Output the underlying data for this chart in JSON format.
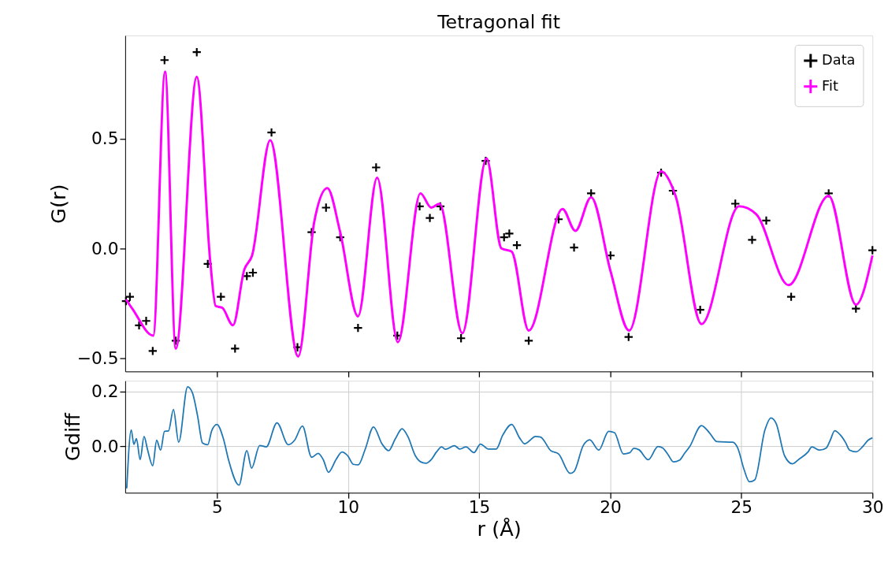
{
  "chart_data": [
    {
      "type": "scatter",
      "title": "Tetragonal fit",
      "ylabel": "G(r)",
      "xlim": [
        1.5,
        30
      ],
      "xticks": [
        5,
        10,
        15,
        20,
        25,
        30
      ],
      "ylim": [
        -0.56,
        0.97
      ],
      "yticks": [
        -0.5,
        {
          "value": 0,
          "label": "0.0"
        },
        0.5
      ],
      "tick_labels": "y",
      "grid": false,
      "legend": "top right",
      "series": [
        {
          "name": "Data",
          "type": "scatter",
          "marker": "cross",
          "color": "#000000",
          "x": [
            1.53,
            1.68,
            2.03,
            2.3,
            2.55,
            3.0,
            3.43,
            4.23,
            4.65,
            5.15,
            5.69,
            6.14,
            6.37,
            7.08,
            8.07,
            8.61,
            9.16,
            9.7,
            10.38,
            11.07,
            11.88,
            12.73,
            13.12,
            13.52,
            14.31,
            15.25,
            15.95,
            16.15,
            16.44,
            16.89,
            18.03,
            18.62,
            19.27,
            20.01,
            20.7,
            21.94,
            22.39,
            23.43,
            24.77,
            25.41,
            25.95,
            26.9,
            28.33,
            29.37,
            30.0
          ],
          "values": [
            -0.24,
            -0.22,
            -0.35,
            -0.33,
            -0.467,
            0.858,
            -0.42,
            0.894,
            -0.07,
            -0.22,
            -0.456,
            -0.126,
            -0.11,
            0.528,
            -0.45,
            0.074,
            0.186,
            0.051,
            -0.362,
            0.369,
            -0.397,
            0.192,
            0.139,
            0.192,
            -0.409,
            0.399,
            0.051,
            0.068,
            0.015,
            -0.42,
            0.133,
            0.004,
            0.251,
            -0.032,
            -0.403,
            0.345,
            0.263,
            -0.279,
            0.204,
            0.039,
            0.127,
            -0.22,
            0.251,
            -0.274,
            -0.008
          ]
        },
        {
          "name": "Fit",
          "type": "line",
          "color": "#ff00ff",
          "x": [
            1.53,
            1.77,
            2.57,
            3.02,
            3.43,
            4.23,
            4.75,
            4.95,
            5.2,
            5.61,
            6.04,
            6.34,
            7.03,
            8.1,
            8.71,
            9.21,
            9.7,
            10.38,
            11.11,
            11.9,
            12.76,
            13.17,
            13.49,
            14.36,
            15.28,
            15.85,
            16.24,
            16.89,
            18.18,
            18.67,
            19.27,
            20.01,
            20.72,
            21.94,
            22.49,
            23.48,
            24.91,
            25.56,
            26.8,
            28.33,
            29.37,
            30.0
          ],
          "values": [
            -0.232,
            -0.274,
            -0.397,
            0.805,
            -0.456,
            0.782,
            -0.067,
            -0.262,
            -0.27,
            -0.35,
            -0.097,
            -0.032,
            0.493,
            -0.492,
            0.121,
            0.275,
            0.074,
            -0.309,
            0.322,
            -0.427,
            0.251,
            0.186,
            0.204,
            -0.386,
            0.41,
            0.0,
            -0.014,
            -0.374,
            0.18,
            0.08,
            0.233,
            -0.103,
            -0.374,
            0.351,
            0.24,
            -0.344,
            0.192,
            0.157,
            -0.167,
            0.24,
            -0.256,
            -0.032
          ]
        }
      ]
    },
    {
      "type": "line",
      "xlabel": "r (Å)",
      "ylabel": "Gdiff",
      "xlim": [
        1.5,
        30
      ],
      "xticks": [
        5,
        10,
        15,
        20,
        25,
        30
      ],
      "ylim": [
        -0.17,
        0.24
      ],
      "yticks": [
        {
          "value": 0,
          "label": "0.0"
        },
        0.2
      ],
      "grid": true,
      "legend": false,
      "series": [
        {
          "color": "#1f77b4",
          "x": [
            1.56,
            1.73,
            1.83,
            1.93,
            2.07,
            2.22,
            2.35,
            2.55,
            2.7,
            2.85,
            3.0,
            3.15,
            3.34,
            3.54,
            3.88,
            4.06,
            4.26,
            4.45,
            4.65,
            4.8,
            5.0,
            5.25,
            5.44,
            5.84,
            6.14,
            6.32,
            6.63,
            6.88,
            7.29,
            7.72,
            7.96,
            8.26,
            8.61,
            8.86,
            9.06,
            9.25,
            9.55,
            9.77,
            9.99,
            10.2,
            10.39,
            10.65,
            10.97,
            11.3,
            11.55,
            11.8,
            12.06,
            12.28,
            12.57,
            12.77,
            12.97,
            13.17,
            13.37,
            13.57,
            13.71,
            14.06,
            14.26,
            14.5,
            14.8,
            15.05,
            15.35,
            15.65,
            15.9,
            16.24,
            16.54,
            16.74,
            16.94,
            17.14,
            17.34,
            17.73,
            18.03,
            18.47,
            18.62,
            18.97,
            19.22,
            19.56,
            19.94,
            20.16,
            20.5,
            20.75,
            20.9,
            21.1,
            21.45,
            21.82,
            22.0,
            22.2,
            22.41,
            22.64,
            22.84,
            23.03,
            23.48,
            23.78,
            24.07,
            24.67,
            24.86,
            25.11,
            25.31,
            25.51,
            25.9,
            26.13,
            26.33,
            26.65,
            26.95,
            27.2,
            27.54,
            27.69,
            27.99,
            28.24,
            28.39,
            28.56,
            28.78,
            28.98,
            29.13,
            29.38,
            29.63,
            29.83,
            30.0
          ],
          "values": [
            -0.154,
            0.06,
            0.007,
            0.028,
            -0.049,
            0.036,
            -0.011,
            -0.071,
            0.022,
            -0.014,
            0.055,
            0.056,
            0.135,
            0.015,
            0.218,
            0.197,
            0.112,
            0.012,
            0.006,
            0.057,
            0.08,
            0.026,
            -0.049,
            -0.142,
            -0.016,
            -0.08,
            0.003,
            -0.002,
            0.086,
            0.006,
            0.022,
            0.074,
            -0.04,
            -0.026,
            -0.05,
            -0.095,
            -0.047,
            -0.021,
            -0.035,
            -0.066,
            -0.068,
            -0.012,
            0.071,
            0.008,
            -0.016,
            0.027,
            0.064,
            0.036,
            -0.035,
            -0.057,
            -0.062,
            -0.049,
            -0.021,
            -0.002,
            -0.011,
            0.002,
            -0.01,
            -0.002,
            -0.023,
            0.008,
            -0.01,
            -0.01,
            0.041,
            0.08,
            0.031,
            0.009,
            0.022,
            0.036,
            0.034,
            -0.016,
            -0.028,
            -0.099,
            -0.092,
            0.003,
            0.024,
            -0.014,
            0.055,
            0.05,
            -0.028,
            -0.023,
            -0.007,
            -0.013,
            -0.049,
            -0.001,
            -0.006,
            -0.03,
            -0.057,
            -0.051,
            -0.025,
            -0.001,
            0.076,
            0.05,
            0.017,
            0.015,
            -0.006,
            -0.087,
            -0.13,
            -0.123,
            0.06,
            0.104,
            0.083,
            -0.035,
            -0.064,
            -0.047,
            -0.021,
            -0.002,
            -0.014,
            -0.006,
            0.022,
            0.057,
            0.041,
            0.013,
            -0.014,
            -0.02,
            -0.001,
            0.022,
            0.031
          ]
        }
      ]
    }
  ]
}
